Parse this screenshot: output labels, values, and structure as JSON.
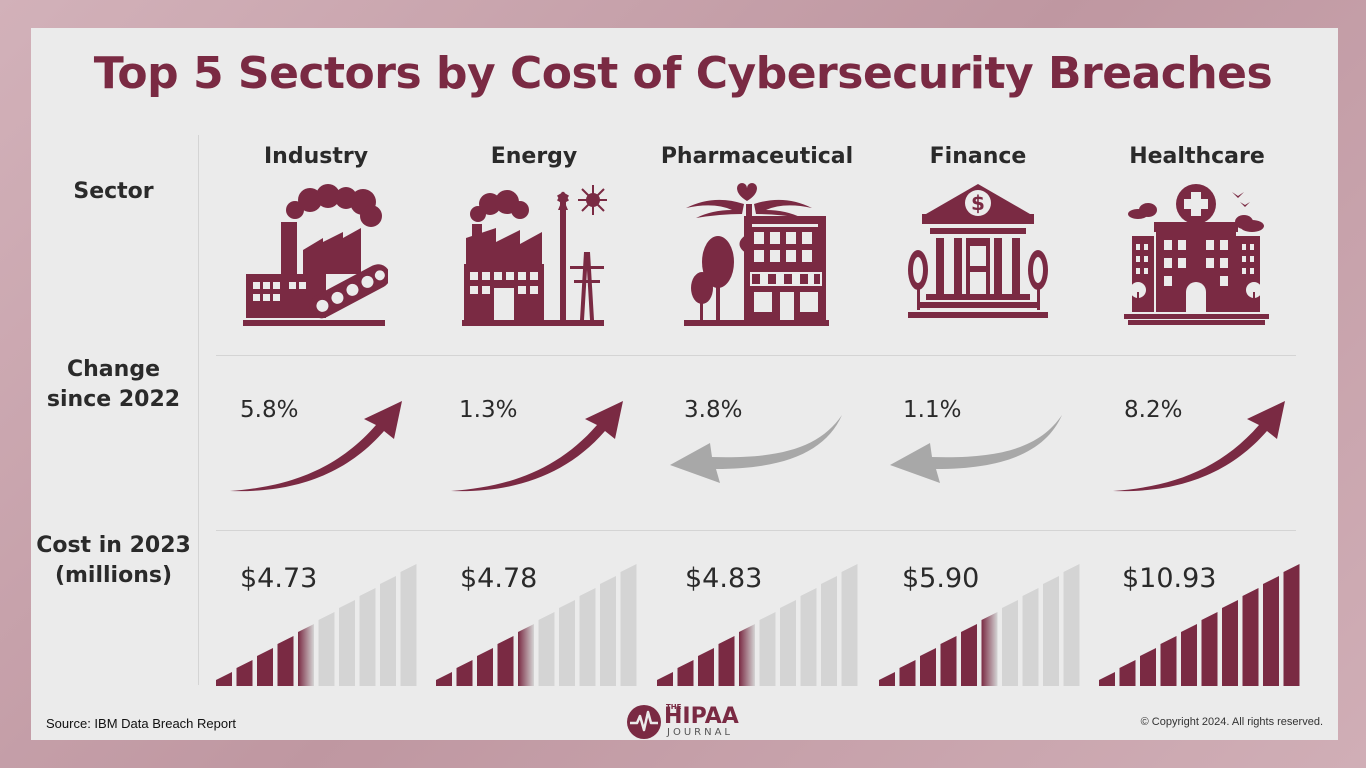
{
  "title": "Top 5 Sectors by Cost of Cybersecurity Breaches",
  "row_labels": {
    "sector": "Sector",
    "change_line1": "Change",
    "change_line2": "since 2022",
    "cost_line1": "Cost in 2023",
    "cost_line2": "(millions)"
  },
  "footer": {
    "source": "Source: IBM Data Breach Report",
    "copyright": "© Copyright 2024. All rights reserved.",
    "logo_the": "THE",
    "logo_main": "HIPAA",
    "logo_sub": "JOURNAL"
  },
  "colors": {
    "accent": "#7a2a43",
    "muted": "#a8a8a8",
    "bar_empty": "#d4d4d4"
  },
  "chart_data": {
    "type": "table",
    "title": "Top 5 Sectors by Cost of Cybersecurity Breaches",
    "categories": [
      "Industry",
      "Energy",
      "Pharmaceutical",
      "Finance",
      "Healthcare"
    ],
    "series": [
      {
        "name": "Change since 2022",
        "values": [
          5.8,
          1.3,
          -3.8,
          -1.1,
          8.2
        ],
        "labels": [
          "5.8%",
          "1.3%",
          "3.8%",
          "1.1%",
          "8.2%"
        ],
        "direction": [
          "up",
          "up",
          "down",
          "down",
          "up"
        ]
      },
      {
        "name": "Cost in 2023 (millions)",
        "values": [
          4.73,
          4.78,
          4.83,
          5.9,
          10.93
        ],
        "labels": [
          "$4.73",
          "$4.78",
          "$4.83",
          "$5.90",
          "$10.93"
        ],
        "filled_bars_of_10": [
          4.5,
          4.5,
          4.5,
          5.5,
          10
        ]
      }
    ],
    "icons": [
      "factory-icon",
      "power-plant-icon",
      "pharmacy-icon",
      "bank-icon",
      "hospital-icon"
    ]
  }
}
